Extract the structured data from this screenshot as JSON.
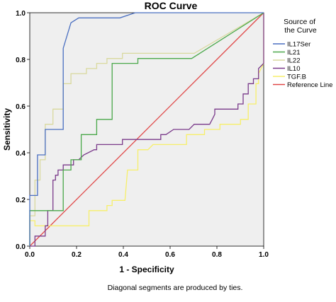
{
  "chart_data": {
    "type": "line",
    "title": "ROC Curve",
    "xlabel": "1 - Specificity",
    "ylabel": "Sensitivity",
    "xlim": [
      0,
      1
    ],
    "ylim": [
      0,
      1
    ],
    "x_ticks": [
      "0.0",
      "0.2",
      "0.4",
      "0.6",
      "0.8",
      "1.0"
    ],
    "y_ticks": [
      "0.0",
      "0.2",
      "0.4",
      "0.6",
      "0.8",
      "1.0"
    ],
    "grid": false,
    "plot_background": "#efefef",
    "legend": {
      "title": "Source of the Curve",
      "position": "right",
      "entries": [
        "IL17Ser",
        "IL21",
        "IL22",
        "IL10",
        "TGF.B",
        "Reference Line"
      ]
    },
    "footnote": "Diagonal segments are produced by ties.",
    "series": [
      {
        "name": "IL17Ser",
        "color": "#4a6fc1",
        "points": [
          [
            0,
            0
          ],
          [
            0,
            0.217
          ],
          [
            0.033,
            0.217
          ],
          [
            0.033,
            0.391
          ],
          [
            0.066,
            0.391
          ],
          [
            0.066,
            0.5
          ],
          [
            0.143,
            0.5
          ],
          [
            0.143,
            0.848
          ],
          [
            0.176,
            0.957
          ],
          [
            0.209,
            0.978
          ],
          [
            0.385,
            0.978
          ],
          [
            0.451,
            1
          ],
          [
            1,
            1
          ]
        ]
      },
      {
        "name": "IL21",
        "color": "#4aa84a",
        "points": [
          [
            0,
            0
          ],
          [
            0,
            0.152
          ],
          [
            0.143,
            0.152
          ],
          [
            0.143,
            0.326
          ],
          [
            0.176,
            0.326
          ],
          [
            0.176,
            0.37
          ],
          [
            0.22,
            0.37
          ],
          [
            0.22,
            0.478
          ],
          [
            0.286,
            0.478
          ],
          [
            0.286,
            0.543
          ],
          [
            0.352,
            0.543
          ],
          [
            0.352,
            0.783
          ],
          [
            0.462,
            0.783
          ],
          [
            0.462,
            0.804
          ],
          [
            0.692,
            0.804
          ],
          [
            1,
            1
          ]
        ]
      },
      {
        "name": "IL22",
        "color": "#d9d99e",
        "points": [
          [
            0,
            0
          ],
          [
            0,
            0.13
          ],
          [
            0.022,
            0.13
          ],
          [
            0.022,
            0.283
          ],
          [
            0.044,
            0.283
          ],
          [
            0.044,
            0.37
          ],
          [
            0.066,
            0.37
          ],
          [
            0.066,
            0.522
          ],
          [
            0.099,
            0.522
          ],
          [
            0.099,
            0.587
          ],
          [
            0.143,
            0.587
          ],
          [
            0.143,
            0.696
          ],
          [
            0.176,
            0.696
          ],
          [
            0.176,
            0.739
          ],
          [
            0.242,
            0.739
          ],
          [
            0.242,
            0.761
          ],
          [
            0.286,
            0.761
          ],
          [
            0.286,
            0.783
          ],
          [
            0.33,
            0.783
          ],
          [
            0.33,
            0.804
          ],
          [
            0.396,
            0.804
          ],
          [
            0.396,
            0.826
          ],
          [
            0.703,
            0.826
          ],
          [
            1,
            1
          ]
        ]
      },
      {
        "name": "IL10",
        "color": "#7a3a8a",
        "points": [
          [
            0,
            0
          ],
          [
            0.022,
            0
          ],
          [
            0.022,
            0.043
          ],
          [
            0.066,
            0.043
          ],
          [
            0.066,
            0.087
          ],
          [
            0.077,
            0.087
          ],
          [
            0.077,
            0.152
          ],
          [
            0.099,
            0.152
          ],
          [
            0.099,
            0.283
          ],
          [
            0.11,
            0.283
          ],
          [
            0.11,
            0.304
          ],
          [
            0.121,
            0.304
          ],
          [
            0.121,
            0.326
          ],
          [
            0.143,
            0.326
          ],
          [
            0.143,
            0.348
          ],
          [
            0.187,
            0.348
          ],
          [
            0.187,
            0.37
          ],
          [
            0.209,
            0.37
          ],
          [
            0.231,
            0.391
          ],
          [
            0.275,
            0.413
          ],
          [
            0.286,
            0.413
          ],
          [
            0.286,
            0.435
          ],
          [
            0.396,
            0.435
          ],
          [
            0.396,
            0.457
          ],
          [
            0.495,
            0.457
          ],
          [
            0.495,
            0.457
          ],
          [
            0.56,
            0.457
          ],
          [
            0.56,
            0.478
          ],
          [
            0.582,
            0.478
          ],
          [
            0.615,
            0.5
          ],
          [
            0.681,
            0.5
          ],
          [
            0.703,
            0.522
          ],
          [
            0.769,
            0.522
          ],
          [
            0.78,
            0.543
          ],
          [
            0.791,
            0.565
          ],
          [
            0.791,
            0.587
          ],
          [
            0.89,
            0.587
          ],
          [
            0.89,
            0.609
          ],
          [
            0.912,
            0.609
          ],
          [
            0.912,
            0.652
          ],
          [
            0.934,
            0.652
          ],
          [
            0.934,
            0.696
          ],
          [
            0.956,
            0.696
          ],
          [
            0.956,
            0.717
          ],
          [
            0.978,
            0.717
          ],
          [
            0.978,
            0.761
          ],
          [
            1,
            0.783
          ],
          [
            1,
            1
          ]
        ]
      },
      {
        "name": "TGF.B",
        "color": "#f7ef6a",
        "points": [
          [
            0,
            0
          ],
          [
            0,
            0.109
          ],
          [
            0.022,
            0.109
          ],
          [
            0.022,
            0.087
          ],
          [
            0.253,
            0.087
          ],
          [
            0.253,
            0.152
          ],
          [
            0.33,
            0.152
          ],
          [
            0.33,
            0.174
          ],
          [
            0.352,
            0.174
          ],
          [
            0.352,
            0.196
          ],
          [
            0.407,
            0.196
          ],
          [
            0.418,
            0.326
          ],
          [
            0.462,
            0.326
          ],
          [
            0.462,
            0.413
          ],
          [
            0.505,
            0.413
          ],
          [
            0.527,
            0.435
          ],
          [
            0.67,
            0.435
          ],
          [
            0.67,
            0.478
          ],
          [
            0.747,
            0.478
          ],
          [
            0.747,
            0.5
          ],
          [
            0.813,
            0.5
          ],
          [
            0.813,
            0.522
          ],
          [
            0.901,
            0.522
          ],
          [
            0.901,
            0.543
          ],
          [
            0.934,
            0.543
          ],
          [
            0.934,
            0.609
          ],
          [
            0.967,
            0.609
          ],
          [
            0.967,
            0.696
          ],
          [
            0.978,
            0.696
          ],
          [
            0.978,
            0.739
          ],
          [
            1,
            0.783
          ],
          [
            1,
            1
          ]
        ]
      },
      {
        "name": "Reference Line",
        "color": "#e04848",
        "points": [
          [
            0,
            0
          ],
          [
            1,
            1
          ]
        ]
      }
    ]
  }
}
